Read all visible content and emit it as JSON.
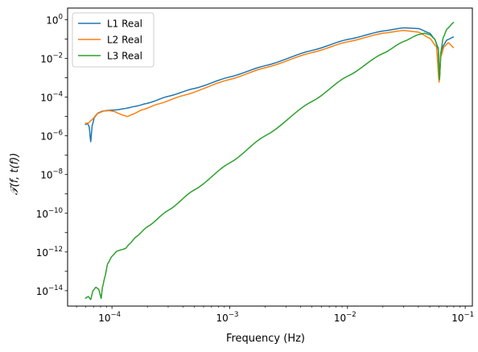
{
  "chart_data": {
    "type": "line",
    "title": "",
    "xlabel": "Frequency (Hz)",
    "ylabel": "𝒯(f, t(f))",
    "x_scale": "log",
    "y_scale": "log",
    "xlim": [
      4.2e-05,
      0.115
    ],
    "ylim": [
      1.6e-15,
      4.0
    ],
    "grid": false,
    "legend_position": "top-left",
    "x_ticks": [
      {
        "value": 0.0001,
        "base": "10",
        "exp": "−4"
      },
      {
        "value": 0.001,
        "base": "10",
        "exp": "−3"
      },
      {
        "value": 0.01,
        "base": "10",
        "exp": "−2"
      },
      {
        "value": 0.1,
        "base": "10",
        "exp": "−1"
      }
    ],
    "y_ticks": [
      {
        "value": 1e-14,
        "base": "10",
        "exp": "−14"
      },
      {
        "value": 1e-12,
        "base": "10",
        "exp": "−12"
      },
      {
        "value": 1e-10,
        "base": "10",
        "exp": "−10"
      },
      {
        "value": 1e-08,
        "base": "10",
        "exp": "−8"
      },
      {
        "value": 1e-06,
        "base": "10",
        "exp": "−6"
      },
      {
        "value": 0.0001,
        "base": "10",
        "exp": "−4"
      },
      {
        "value": 0.01,
        "base": "10",
        "exp": "−2"
      },
      {
        "value": 1,
        "base": "10",
        "exp": "0"
      }
    ],
    "series": [
      {
        "name": "L1 Real",
        "color": "#1f77b4",
        "x": [
          5.9e-05,
          6.2e-05,
          6.4e-05,
          6.6e-05,
          6.8e-05,
          7.1e-05,
          7.6e-05,
          8.3e-05,
          9.5e-05,
          0.00011,
          0.00013,
          0.00016,
          0.0002,
          0.0003,
          0.0005,
          0.001,
          0.002,
          0.005,
          0.01,
          0.02,
          0.03,
          0.04,
          0.05,
          0.055,
          0.059,
          0.0605,
          0.062,
          0.065,
          0.07,
          0.08
        ],
        "y": [
          3.8e-06,
          4.3e-06,
          3e-06,
          5e-07,
          3.5e-06,
          9e-06,
          1.5e-05,
          1.9e-05,
          2.1e-05,
          2.2e-05,
          2.6e-05,
          3.4e-05,
          4.8e-05,
          0.00011,
          0.00028,
          0.0011,
          0.0042,
          0.026,
          0.095,
          0.26,
          0.38,
          0.35,
          0.2,
          0.1,
          0.035,
          0.001,
          0.012,
          0.045,
          0.09,
          0.13
        ]
      },
      {
        "name": "L2 Real",
        "color": "#ff7f0e",
        "x": [
          5.9e-05,
          6.3e-05,
          6.8e-05,
          7.5e-05,
          8.5e-05,
          9.5e-05,
          0.000105,
          0.000115,
          0.000125,
          0.000135,
          0.00015,
          0.00018,
          0.00025,
          0.0004,
          0.001,
          0.002,
          0.005,
          0.01,
          0.02,
          0.03,
          0.04,
          0.05,
          0.057,
          0.06,
          0.062,
          0.066,
          0.072,
          0.08
        ],
        "y": [
          4.4e-06,
          4.6e-06,
          7e-06,
          1.4e-05,
          1.9e-05,
          2e-05,
          1.8e-05,
          1.4e-05,
          1.15e-05,
          1e-05,
          1.3e-05,
          2.2e-05,
          4.5e-05,
          0.00012,
          0.00082,
          0.0033,
          0.02,
          0.072,
          0.2,
          0.28,
          0.23,
          0.11,
          0.04,
          0.0006,
          0.012,
          0.04,
          0.065,
          0.035
        ]
      },
      {
        "name": "L3 Real",
        "color": "#2ca02c",
        "x": [
          5.9e-05,
          6.3e-05,
          6.6e-05,
          6.9e-05,
          7.3e-05,
          7.7e-05,
          8.1e-05,
          8.3e-05,
          8.7e-05,
          9.2e-05,
          0.0001,
          0.00011,
          0.00012,
          0.00013,
          0.00014,
          0.00016,
          0.0002,
          0.0003,
          0.0005,
          0.001,
          0.002,
          0.005,
          0.01,
          0.02,
          0.03,
          0.04,
          0.045,
          0.05,
          0.055,
          0.059,
          0.0605,
          0.062,
          0.065,
          0.07,
          0.08
        ],
        "y": [
          4e-15,
          5e-15,
          3.5e-15,
          1e-14,
          1.5e-14,
          1.2e-14,
          4e-15,
          1.5e-14,
          5e-14,
          2.5e-13,
          6e-13,
          1.1e-12,
          1.3e-12,
          1.5e-12,
          2.5e-12,
          6e-12,
          2e-11,
          1.4e-10,
          1.6e-09,
          4e-08,
          1e-06,
          6e-05,
          0.0012,
          0.018,
          0.075,
          0.17,
          0.2,
          0.17,
          0.1,
          0.03,
          0.0008,
          0.02,
          0.12,
          0.33,
          0.75
        ]
      }
    ]
  }
}
